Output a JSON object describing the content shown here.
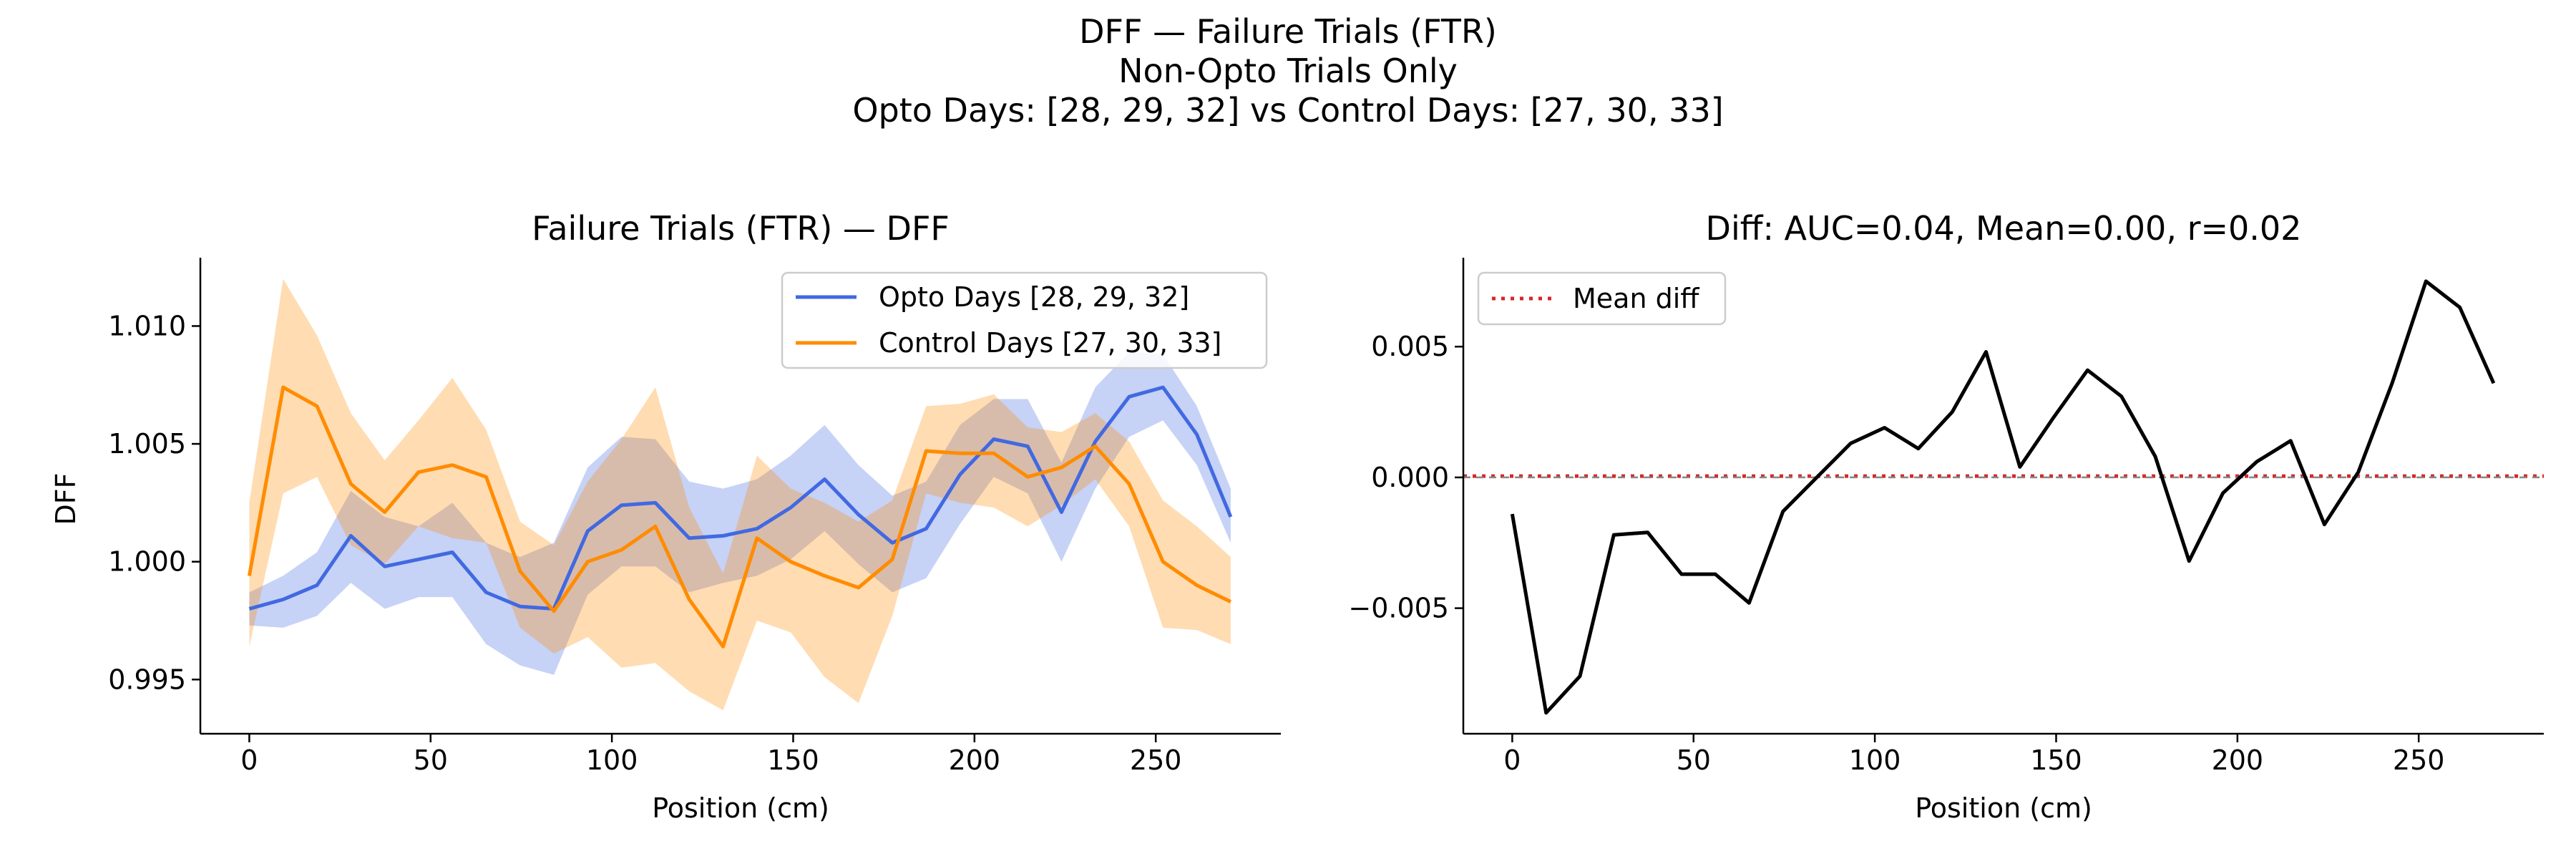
{
  "figure": {
    "suptitle": [
      "DFF — Failure Trials (FTR)",
      "Non-Opto Trials Only",
      "Opto Days: [28, 29, 32] vs Control Days: [27, 30, 33]"
    ]
  },
  "chart_data": [
    {
      "type": "line",
      "title": "Failure Trials (FTR) — DFF",
      "xlabel": "Position (cm)",
      "ylabel": "DFF",
      "xlim": [
        -13.5,
        284.5
      ],
      "ylim": [
        0.9927,
        1.0129
      ],
      "xticks": [
        0,
        50,
        100,
        150,
        200,
        250
      ],
      "xtick_labels": [
        "0",
        "50",
        "100",
        "150",
        "200",
        "250"
      ],
      "yticks": [
        0.995,
        1.0,
        1.005,
        1.01
      ],
      "ytick_labels": [
        "0.995",
        "1.000",
        "1.005",
        "1.010"
      ],
      "legend_position": "upper-right",
      "x": [
        0,
        9.33,
        18.67,
        28,
        37.33,
        46.67,
        56,
        65.33,
        74.67,
        84,
        93.33,
        102.67,
        112,
        121.33,
        130.67,
        140,
        149.33,
        158.67,
        168,
        177.33,
        186.67,
        196,
        205.33,
        214.67,
        224,
        233.33,
        242.67,
        252,
        261.33,
        270.67
      ],
      "series": [
        {
          "name": "Opto Days [28, 29, 32]",
          "color": "#4169e1",
          "values": [
            0.998,
            0.9984,
            0.999,
            1.0011,
            0.9998,
            1.0001,
            1.0004,
            0.9987,
            0.9981,
            0.998,
            1.0013,
            1.0024,
            1.0025,
            1.001,
            1.0011,
            1.0014,
            1.0023,
            1.0035,
            1.002,
            1.0008,
            1.0014,
            1.0037,
            1.0052,
            1.0049,
            1.0021,
            1.0051,
            1.007,
            1.0074,
            1.0054,
            1.0019
          ],
          "upper": [
            0.9987,
            0.9994,
            1.0004,
            1.003,
            1.0019,
            1.0015,
            1.0025,
            1.0008,
            1.0002,
            1.0008,
            1.004,
            1.0053,
            1.0052,
            1.0034,
            1.0031,
            1.0035,
            1.0045,
            1.0058,
            1.0041,
            1.0028,
            1.0034,
            1.0058,
            1.0069,
            1.0069,
            1.0042,
            1.0074,
            1.0089,
            1.0088,
            1.0066,
            1.0031
          ],
          "lower": [
            0.9973,
            0.9972,
            0.9977,
            0.9991,
            0.998,
            0.9985,
            0.9985,
            0.9965,
            0.9956,
            0.9952,
            0.9986,
            0.9998,
            0.9998,
            0.9987,
            0.9991,
            0.9994,
            1.0001,
            1.0013,
            0.9999,
            0.9987,
            0.9993,
            1.0016,
            1.0036,
            1.0029,
            1.0,
            1.0031,
            1.0053,
            1.006,
            1.0041,
            1.0008
          ]
        },
        {
          "name": "Control Days [27, 30, 33]",
          "color": "#ff8c00",
          "values": [
            0.9994,
            1.0074,
            1.0066,
            1.0033,
            1.0021,
            1.0038,
            1.0041,
            1.0036,
            0.9996,
            0.9979,
            1.0,
            1.0005,
            1.0015,
            0.9984,
            0.9964,
            1.001,
            1.0,
            0.9994,
            0.9989,
            1.0001,
            1.0047,
            1.0046,
            1.0046,
            1.0036,
            1.004,
            1.0049,
            1.0033,
            1.0,
            0.999,
            0.9983
          ],
          "upper": [
            1.0025,
            1.012,
            1.0096,
            1.0063,
            1.0043,
            1.006,
            1.0078,
            1.0056,
            1.0017,
            1.0007,
            1.0034,
            1.0052,
            1.0074,
            1.0023,
            0.9995,
            1.0045,
            1.0031,
            1.0025,
            1.0017,
            1.0026,
            1.0066,
            1.0067,
            1.0071,
            1.0057,
            1.0055,
            1.0063,
            1.0051,
            1.0026,
            1.0015,
            1.0002
          ],
          "lower": [
            0.9964,
            1.0029,
            1.0036,
            1.0007,
            0.9999,
            1.0015,
            1.001,
            1.0008,
            0.9972,
            0.9961,
            0.9968,
            0.9955,
            0.9957,
            0.9945,
            0.9937,
            0.9975,
            0.997,
            0.9951,
            0.994,
            0.9977,
            1.0029,
            1.0025,
            1.0023,
            1.0015,
            1.0024,
            1.0035,
            1.0015,
            0.9972,
            0.9971,
            0.9965
          ]
        }
      ]
    },
    {
      "type": "line",
      "title": "Diff: AUC=0.04, Mean=0.00, r=0.02",
      "xlabel": "Position (cm)",
      "ylabel": "",
      "xlim": [
        -13.5,
        284.5
      ],
      "ylim": [
        -0.0098,
        0.0084
      ],
      "xticks": [
        0,
        50,
        100,
        150,
        200,
        250
      ],
      "xtick_labels": [
        "0",
        "50",
        "100",
        "150",
        "200",
        "250"
      ],
      "yticks": [
        -0.005,
        0.0,
        0.005
      ],
      "ytick_labels": [
        "−0.005",
        "0.000",
        "0.005"
      ],
      "legend_position": "upper-left",
      "x": [
        0,
        9.33,
        18.67,
        28,
        37.33,
        46.67,
        56,
        65.33,
        74.67,
        84,
        93.33,
        102.67,
        112,
        121.33,
        130.67,
        140,
        149.33,
        158.67,
        168,
        177.33,
        186.67,
        196,
        205.33,
        214.67,
        224,
        233.33,
        242.67,
        252,
        261.33,
        270.67
      ],
      "series": [
        {
          "name": "",
          "color": "#000000",
          "values": [
            -0.0014,
            -0.009,
            -0.0076,
            -0.0022,
            -0.0021,
            -0.0037,
            -0.0037,
            -0.0048,
            -0.0013,
            0.0,
            0.0013,
            0.0019,
            0.0011,
            0.0025,
            0.0048,
            0.0004,
            0.0023,
            0.0041,
            0.0031,
            0.0008,
            -0.0032,
            -0.0006,
            0.0006,
            0.0014,
            -0.0018,
            0.0002,
            0.0036,
            0.0075,
            0.0065,
            0.0036
          ]
        }
      ],
      "mean_line": {
        "name": "Mean diff",
        "value": 5e-05,
        "color": "#d62728"
      }
    }
  ]
}
